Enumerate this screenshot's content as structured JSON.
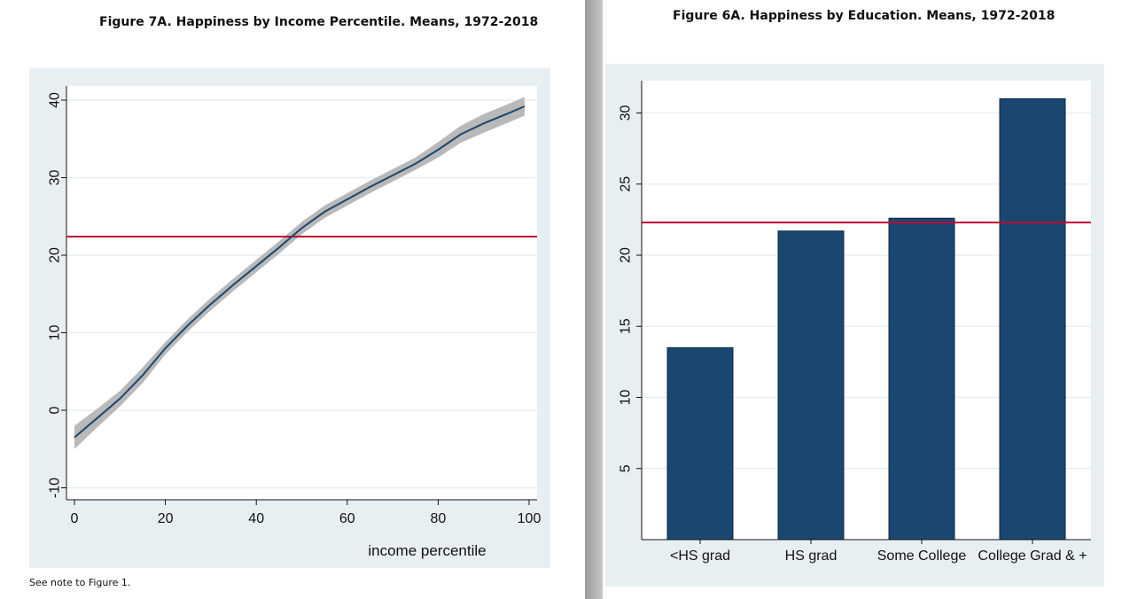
{
  "left_figure": {
    "title": "Figure 7A. Happiness by Income Percentile. Means, 1972-2018",
    "note": "See note to Figure 1."
  },
  "right_figure": {
    "title": "Figure 6A.  Happiness by Education. Means, 1972-2018"
  },
  "colors": {
    "plot_region": "#e8eff2",
    "plot_bg": "#ffffff",
    "line": "#1a476f",
    "ci_band": "#b9b9b9",
    "reference_line": "#c10534",
    "bar": "#1a476f",
    "grid": "#e8eff2"
  },
  "chart_data": [
    {
      "type": "line",
      "title": "Figure 7A. Happiness by Income Percentile. Means, 1972-2018",
      "xlabel": "income percentile",
      "ylabel": "",
      "xlim": [
        0,
        100
      ],
      "ylim": [
        -11,
        41
      ],
      "xticks": [
        0,
        20,
        40,
        60,
        80,
        100
      ],
      "yticks": [
        -10,
        0,
        10,
        20,
        30,
        40
      ],
      "reference_line": 22.4,
      "series": [
        {
          "x": [
            0,
            5,
            10,
            15,
            20,
            25,
            30,
            35,
            40,
            45,
            50,
            55,
            60,
            65,
            70,
            75,
            80,
            85,
            90,
            95,
            99
          ],
          "y": [
            -3.5,
            -1.0,
            1.5,
            4.5,
            8.0,
            11.0,
            13.7,
            16.2,
            18.6,
            21.0,
            23.5,
            25.6,
            27.2,
            28.8,
            30.3,
            31.8,
            33.6,
            35.6,
            37.0,
            38.2,
            39.2
          ],
          "lower": [
            -5.0,
            -2.2,
            0.5,
            3.5,
            7.2,
            10.2,
            12.9,
            15.4,
            17.8,
            20.2,
            22.7,
            24.8,
            26.4,
            28.0,
            29.5,
            31.0,
            32.6,
            34.5,
            35.8,
            37.0,
            38.0
          ],
          "upper": [
            -2.0,
            0.2,
            2.5,
            5.5,
            8.8,
            11.8,
            14.5,
            17.0,
            19.4,
            21.8,
            24.3,
            26.4,
            28.0,
            29.6,
            31.1,
            32.6,
            34.6,
            36.7,
            38.2,
            39.4,
            40.4
          ]
        }
      ],
      "grid": true
    },
    {
      "type": "bar",
      "title": "Figure 6A.  Happiness by Education. Means, 1972-2018",
      "categories": [
        "<HS grad",
        "HS grad",
        "Some College",
        "College Grad & +"
      ],
      "values": [
        13.5,
        21.7,
        22.6,
        31.0
      ],
      "ylim": [
        0,
        32
      ],
      "yticks": [
        5,
        10,
        15,
        20,
        25,
        30
      ],
      "reference_line": 22.3,
      "grid": true
    }
  ]
}
